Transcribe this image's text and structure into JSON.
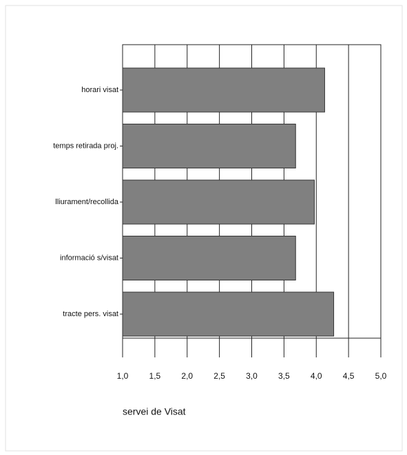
{
  "chart_data": {
    "type": "barh",
    "categories": [
      "horari visat",
      "temps retirada proj.",
      "lliurament/recollida",
      "informació s/visat",
      "tracte pers. visat"
    ],
    "values": [
      4.13,
      3.68,
      3.97,
      3.68,
      4.27
    ],
    "color": "#808080",
    "xlabel": "servei de Visat",
    "xlim": [
      1.0,
      5.0
    ],
    "xticks": [
      {
        "value": 1.0,
        "label": "1,0"
      },
      {
        "value": 1.5,
        "label": "1,5"
      },
      {
        "value": 2.0,
        "label": "2,0"
      },
      {
        "value": 2.5,
        "label": "2,5"
      },
      {
        "value": 3.0,
        "label": "3,0"
      },
      {
        "value": 3.5,
        "label": "3,5"
      },
      {
        "value": 4.0,
        "label": "4,0"
      },
      {
        "value": 4.5,
        "label": "4,5"
      },
      {
        "value": 5.0,
        "label": "5,0"
      }
    ],
    "grid": true
  }
}
